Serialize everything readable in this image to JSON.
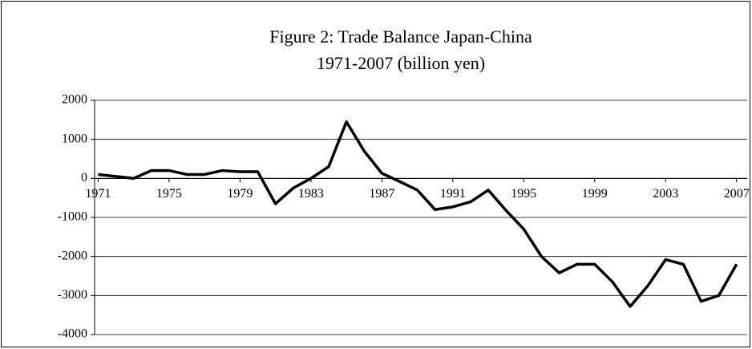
{
  "chart_data": {
    "type": "line",
    "title": [
      "Figure 2: Trade Balance Japan-China",
      "1971-2007 (billion yen)"
    ],
    "x": [
      1971,
      1972,
      1973,
      1974,
      1975,
      1976,
      1977,
      1978,
      1979,
      1980,
      1981,
      1982,
      1983,
      1984,
      1985,
      1986,
      1987,
      1988,
      1989,
      1990,
      1991,
      1992,
      1993,
      1994,
      1995,
      1996,
      1997,
      1998,
      1999,
      2000,
      2001,
      2002,
      2003,
      2004,
      2005,
      2006,
      2007
    ],
    "series": [
      {
        "name": "Trade Balance",
        "color": "#000000",
        "values": [
          100,
          50,
          0,
          200,
          200,
          100,
          100,
          200,
          170,
          170,
          -650,
          -250,
          0,
          300,
          1450,
          700,
          130,
          -80,
          -300,
          -800,
          -730,
          -600,
          -300,
          -820,
          -1300,
          -2000,
          -2420,
          -2200,
          -2200,
          -2650,
          -3280,
          -2750,
          -2080,
          -2200,
          -3150,
          -3000,
          -2200
        ]
      }
    ],
    "xlim": [
      1970.8,
      2007.6
    ],
    "xticks": [
      1971,
      1975,
      1979,
      1983,
      1987,
      1991,
      1995,
      1999,
      2003,
      2007
    ],
    "ylim": [
      -4000,
      2000
    ],
    "yticks": [
      -4000,
      -3000,
      -2000,
      -1000,
      0,
      1000,
      2000
    ],
    "grid": true
  }
}
